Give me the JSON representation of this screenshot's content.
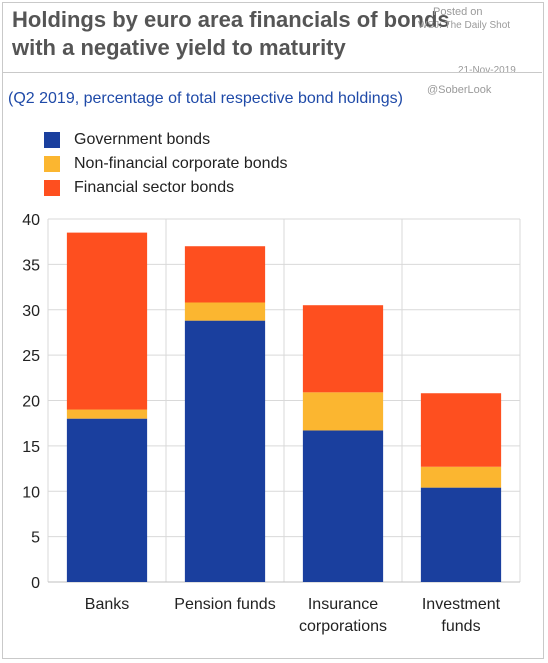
{
  "title_lines": [
    "Holdings by euro area financials of bonds",
    "with a negative yield to maturity"
  ],
  "watermark": {
    "posted_on": "Posted on",
    "source": "WSJ: The Daily Shot",
    "date": "21-Nov-2019",
    "handle": "@SoberLook"
  },
  "subtitle": "(Q2 2019, percentage of total respective bond holdings)",
  "colors": {
    "government": "#1a3f9e",
    "non_financial": "#fbb630",
    "financial": "#fe4f1f",
    "grid": "#d9d9d9"
  },
  "chart_data": {
    "type": "bar",
    "stacked": true,
    "title": "Holdings by euro area financials of bonds with a negative yield to maturity",
    "subtitle": "(Q2 2019, percentage of total respective bond holdings)",
    "categories": [
      [
        "Banks"
      ],
      [
        "Pension funds"
      ],
      [
        "Insurance",
        "corporations"
      ],
      [
        "Investment",
        "funds"
      ]
    ],
    "series": [
      {
        "name": "Government bonds",
        "values": [
          18.0,
          28.8,
          16.7,
          10.4
        ]
      },
      {
        "name": "Non-financial corporate bonds",
        "values": [
          1.0,
          2.0,
          4.2,
          2.3
        ]
      },
      {
        "name": "Financial sector bonds",
        "values": [
          19.5,
          6.2,
          9.6,
          8.1
        ]
      }
    ],
    "ylim": [
      0,
      40
    ],
    "yticks": [
      "0",
      "5",
      "10",
      "15",
      "20",
      "25",
      "30",
      "35",
      "40"
    ],
    "grid": true,
    "legend_position": "top-left"
  }
}
